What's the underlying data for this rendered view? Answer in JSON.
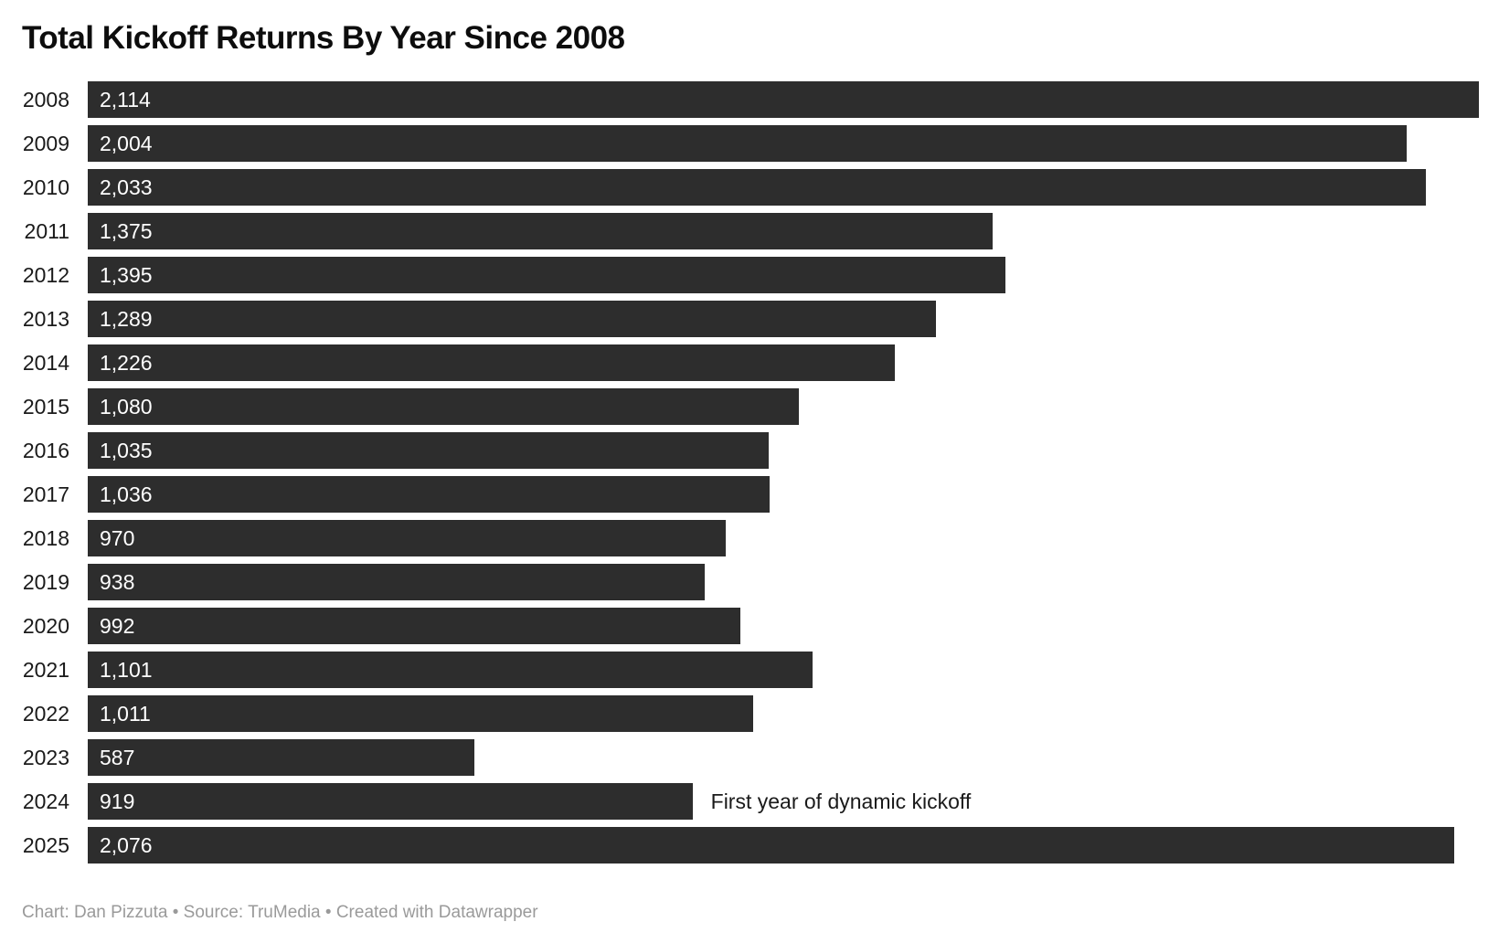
{
  "page": {
    "title": "Total Kickoff Returns By Year Since 2008",
    "footer": "Chart: Dan Pizzuta • Source: TruMedia • Created with Datawrapper"
  },
  "chart_data": {
    "type": "bar",
    "orientation": "horizontal",
    "title": "Total Kickoff Returns By Year Since 2008",
    "xlabel": "",
    "ylabel": "Year",
    "categories": [
      "2008",
      "2009",
      "2010",
      "2011",
      "2012",
      "2013",
      "2014",
      "2015",
      "2016",
      "2017",
      "2018",
      "2019",
      "2020",
      "2021",
      "2022",
      "2023",
      "2024",
      "2025"
    ],
    "values": [
      2114,
      2004,
      2033,
      1375,
      1395,
      1289,
      1226,
      1080,
      1035,
      1036,
      970,
      938,
      992,
      1101,
      1011,
      587,
      919,
      2076
    ],
    "value_labels": [
      "2,114",
      "2,004",
      "2,033",
      "1,375",
      "1,395",
      "1,289",
      "1,226",
      "1,080",
      "1,035",
      "1,036",
      "970",
      "938",
      "992",
      "1,101",
      "1,011",
      "587",
      "919",
      "2,076"
    ],
    "xlim": [
      0,
      2114
    ],
    "annotations": [
      {
        "category": "2024",
        "text": "First year of dynamic kickoff"
      }
    ],
    "bar_color": "#2d2d2d",
    "value_label_color": "#ffffff",
    "category_label_color": "#1a1a1a",
    "grid": false,
    "legend": false,
    "value_labels_inside_bars": true
  }
}
